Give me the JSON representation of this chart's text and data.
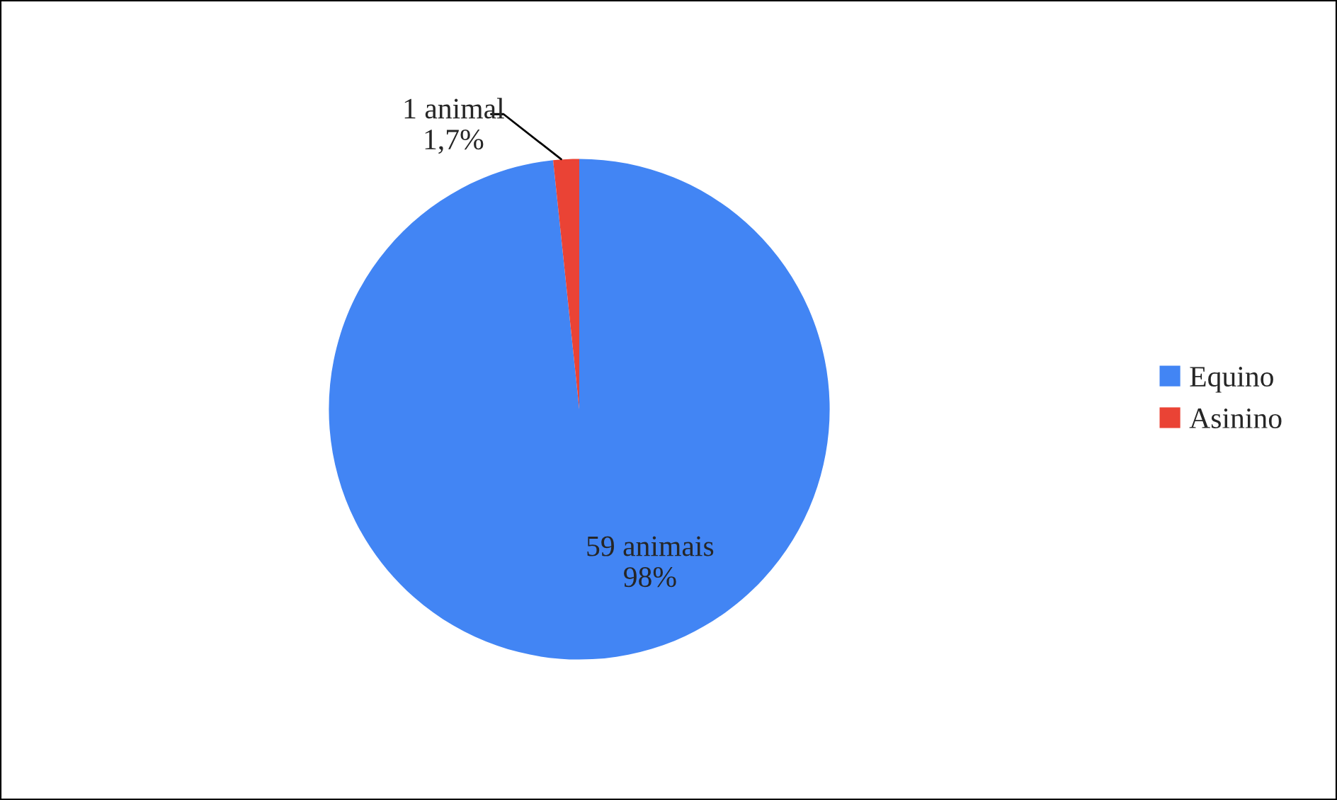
{
  "chart_data": {
    "type": "pie",
    "categories": [
      "Equino",
      "Asinino"
    ],
    "values": [
      59,
      1
    ],
    "value_labels": [
      "59 animais\n98%",
      "1 animal\n1,7%"
    ],
    "colors": [
      "#4285f4",
      "#ea4335"
    ],
    "legend": "right"
  }
}
